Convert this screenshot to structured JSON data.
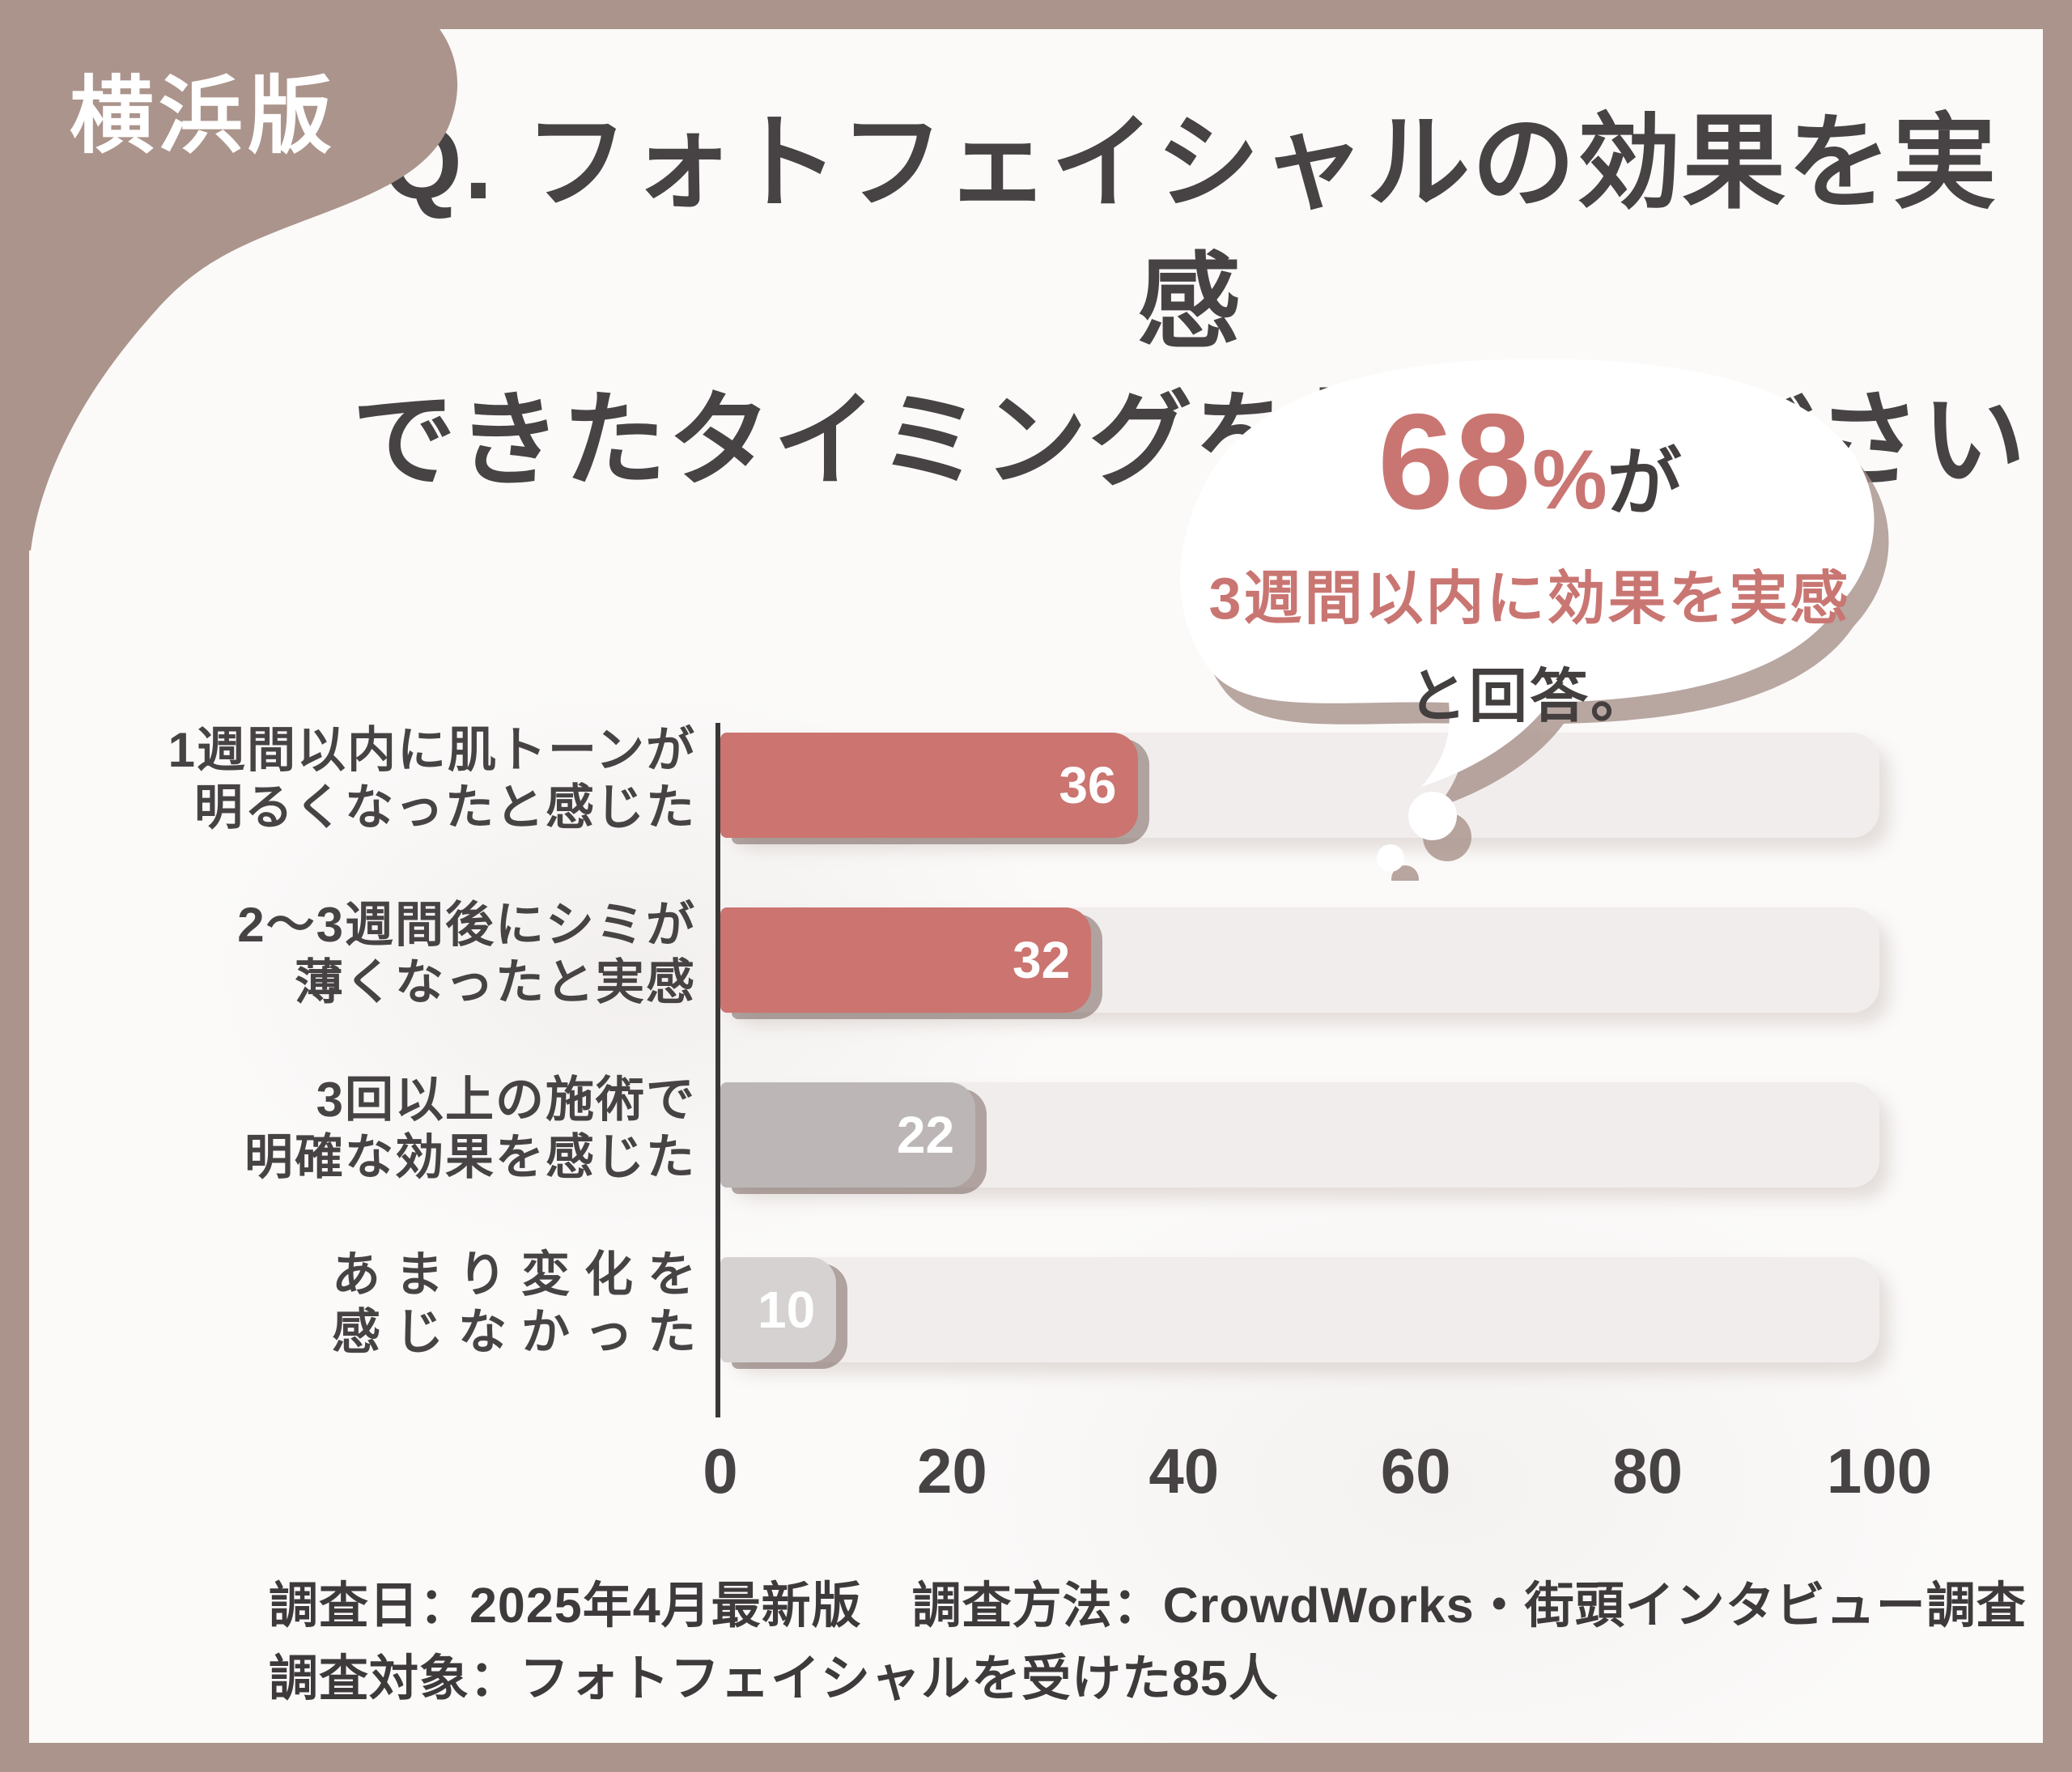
{
  "badge": {
    "label": "横浜版"
  },
  "title": {
    "line1": "Q. フォトフェイシャルの効果を実感",
    "line2": "できたタイミングを教えてください"
  },
  "callout": {
    "headline_value": "68",
    "headline_unit": "%",
    "headline_suffix": "が",
    "line2": "3週間以内に効果を実感",
    "line3": "と回答。"
  },
  "chart_data": {
    "type": "bar",
    "orientation": "horizontal",
    "title": "Q. フォトフェイシャルの効果を実感できたタイミングを教えてください",
    "categories": [
      "1週間以内に肌トーンが明るくなったと感じた",
      "2〜3週間後にシミが薄くなったと実感",
      "3回以上の施術で明確な効果を感じた",
      "あまり変化を感じなかった"
    ],
    "labels": [
      {
        "line1": "1週間以内に肌トーンが",
        "line2": "明るくなったと感じた",
        "spaced": false
      },
      {
        "line1": "2〜3週間後にシミが",
        "line2": "薄くなったと実感",
        "spaced": false
      },
      {
        "line1": "3回以上の施術で",
        "line2": "明確な効果を感じた",
        "spaced": false
      },
      {
        "line1": "あまり変化を",
        "line2": "感じなかった",
        "spaced": true
      }
    ],
    "values": [
      36,
      32,
      22,
      10
    ],
    "bar_colors": [
      "#cb7470",
      "#cb7470",
      "#bcb7b6",
      "#d6d2d2"
    ],
    "track_color": "#f1edec",
    "xlim": [
      0,
      100
    ],
    "x_ticks": [
      0,
      20,
      40,
      60,
      80,
      100
    ],
    "grid": false,
    "legend": false
  },
  "footer": {
    "line1": "調査日：2025年4月最新版　調査方法：CrowdWorks・街頭インタビュー調査",
    "line2": "調査対象：フォトフェイシャルを受けた85人"
  },
  "colors": {
    "frame_brown": "#ab948b",
    "panel_white": "#fbfaf9",
    "accent_salmon": "#c97672",
    "bar_salmon": "#cb7470",
    "bar_gray": "#bcb7b6",
    "bar_light_gray": "#d6d2d2",
    "track": "#f1edec",
    "text_dark": "#474344",
    "bubble_shadow": "#a8918a"
  }
}
